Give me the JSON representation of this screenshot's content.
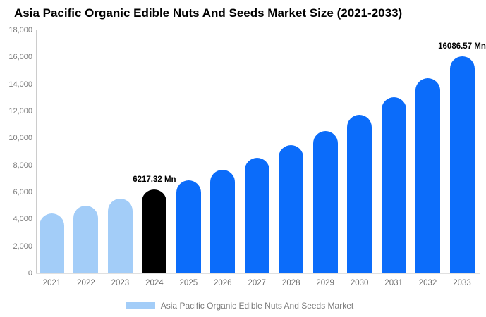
{
  "chart_data": {
    "type": "bar",
    "title": "Asia Pacific Organic Edible Nuts And Seeds Market Size (2021-2033)",
    "xlabel": "",
    "ylabel": "",
    "unit": "Mn",
    "categories": [
      "2021",
      "2022",
      "2023",
      "2024",
      "2025",
      "2026",
      "2027",
      "2028",
      "2029",
      "2030",
      "2031",
      "2032",
      "2033"
    ],
    "values": [
      4430,
      5000,
      5540,
      6217.32,
      6910,
      7680,
      8536,
      9487,
      10544,
      11719,
      13024,
      14476,
      16086.57
    ],
    "ylim": [
      0,
      18000
    ],
    "ytick_step": 2000,
    "ytick_labels": [
      "0",
      "2,000",
      "4,000",
      "6,000",
      "8,000",
      "10,000",
      "12,000",
      "14,000",
      "16,000",
      "18,000"
    ],
    "grid": false,
    "legend_position": "bottom",
    "segments": {
      "historical_years": [
        "2021",
        "2022",
        "2023"
      ],
      "highlight_year": "2024",
      "forecast_years": [
        "2025",
        "2026",
        "2027",
        "2028",
        "2029",
        "2030",
        "2031",
        "2032",
        "2033"
      ]
    },
    "colors": {
      "historical": "#A3CDF8",
      "highlight": "#000000",
      "forecast": "#0B6CFA",
      "axis_line": "#CCCCCC",
      "baseline": "#E0E0E0",
      "ytick_text": "#7A7A7A",
      "xtick_text": "#6E6E6E",
      "annotation_text": "#000000",
      "legend_text": "#7A7A7A"
    },
    "annotations": [
      {
        "category": "2024",
        "text": "6217.32 Mn"
      },
      {
        "category": "2033",
        "text": "16086.57 Mn"
      }
    ],
    "legend": {
      "items": [
        {
          "label": "Asia Pacific Organic Edible Nuts And Seeds Market",
          "swatch_color": "#A3CDF8"
        }
      ]
    }
  }
}
